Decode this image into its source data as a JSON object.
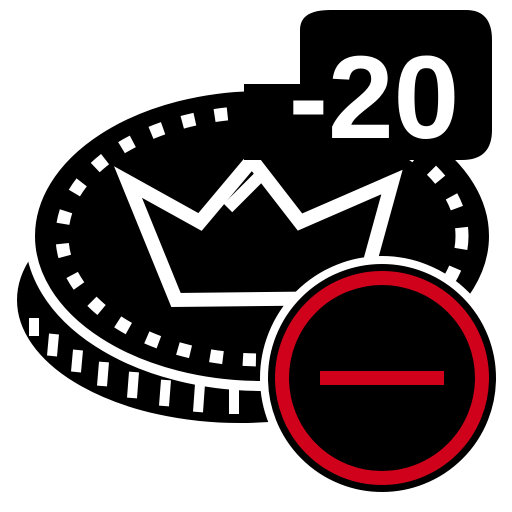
{
  "icon": {
    "name": "coin-minus-20",
    "amount_label": "-20",
    "depicts": [
      "coin-icon",
      "crown-icon",
      "minus-icon"
    ]
  },
  "colors": {
    "coin": "#000000",
    "outline": "#ffffff",
    "accent": "#d0021b",
    "amount_text": "#ffffff"
  }
}
